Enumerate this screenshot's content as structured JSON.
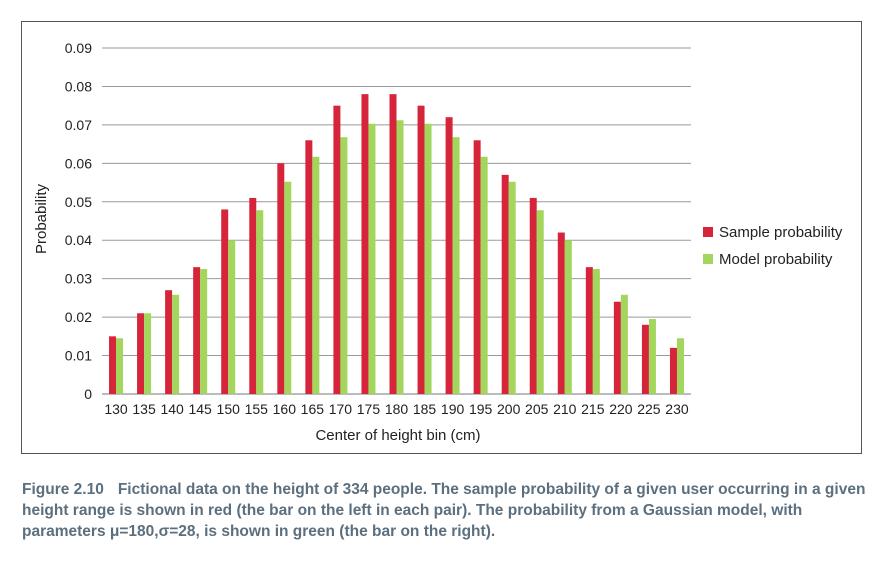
{
  "chart_data": {
    "type": "bar",
    "title": "",
    "xlabel": "Center of height bin (cm)",
    "ylabel": "Probability",
    "ylim": [
      0,
      0.09
    ],
    "yticks": [
      "0",
      "0.01",
      "0.02",
      "0.03",
      "0.04",
      "0.05",
      "0.06",
      "0.07",
      "0.08",
      "0.09"
    ],
    "grid": "horizontal",
    "legend": "right",
    "categories": [
      "130",
      "135",
      "140",
      "145",
      "150",
      "155",
      "160",
      "165",
      "170",
      "175",
      "180",
      "185",
      "190",
      "195",
      "200",
      "205",
      "210",
      "215",
      "220",
      "225",
      "230"
    ],
    "series": [
      {
        "name": "Sample probability",
        "color": "#d6253a",
        "values": [
          0.015,
          0.021,
          0.027,
          0.033,
          0.048,
          0.051,
          0.06,
          0.066,
          0.075,
          0.078,
          0.078,
          0.075,
          0.072,
          0.066,
          0.057,
          0.051,
          0.042,
          0.033,
          0.024,
          0.018,
          0.012
        ]
      },
      {
        "name": "Model probability",
        "color": "#a3d65c",
        "values": [
          0.0145,
          0.021,
          0.0258,
          0.0325,
          0.04,
          0.0478,
          0.0552,
          0.0617,
          0.0668,
          0.0703,
          0.0712,
          0.0703,
          0.0668,
          0.0617,
          0.0552,
          0.0478,
          0.04,
          0.0325,
          0.0258,
          0.0195,
          0.0145
        ]
      }
    ]
  },
  "caption": {
    "label": "Figure 2.10",
    "text": "Fictional data on the height of 334 people. The sample probability of a given user occurring in a given height range is shown in red (the bar on the left in each pair). The probability from a Gaussian model, with parameters μ=180,σ=28, is shown in green (the bar on the right)."
  }
}
